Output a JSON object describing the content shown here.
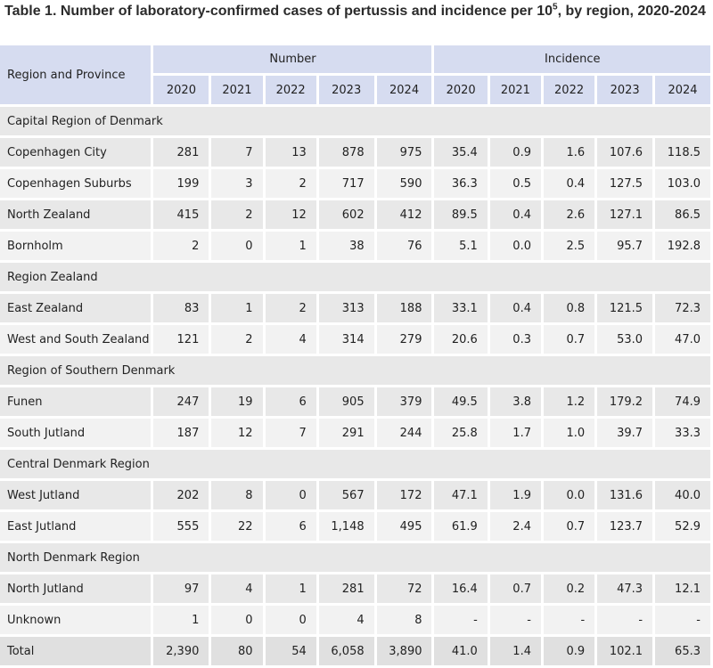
{
  "title_main": "Table 1. Number of laboratory-confirmed cases of pertussis and incidence per 10",
  "title_sup": "5",
  "title_tail": ", by region, 2020-2024",
  "header": {
    "row_label": "Region and Province",
    "group_number": "Number",
    "group_incidence": "Incidence",
    "years": [
      "2020",
      "2021",
      "2022",
      "2023",
      "2024"
    ]
  },
  "rows": [
    {
      "type": "region",
      "label": "Capital Region of Denmark"
    },
    {
      "type": "data",
      "label": "Copenhagen City",
      "number": [
        "281",
        "7",
        "13",
        "878",
        "975"
      ],
      "incidence": [
        "35.4",
        "0.9",
        "1.6",
        "107.6",
        "118.5"
      ]
    },
    {
      "type": "data",
      "label": "Copenhagen Suburbs",
      "number": [
        "199",
        "3",
        "2",
        "717",
        "590"
      ],
      "incidence": [
        "36.3",
        "0.5",
        "0.4",
        "127.5",
        "103.0"
      ]
    },
    {
      "type": "data",
      "label": "North Zealand",
      "number": [
        "415",
        "2",
        "12",
        "602",
        "412"
      ],
      "incidence": [
        "89.5",
        "0.4",
        "2.6",
        "127.1",
        "86.5"
      ]
    },
    {
      "type": "data",
      "label": "Bornholm",
      "number": [
        "2",
        "0",
        "1",
        "38",
        "76"
      ],
      "incidence": [
        "5.1",
        "0.0",
        "2.5",
        "95.7",
        "192.8"
      ]
    },
    {
      "type": "region",
      "label": "Region Zealand"
    },
    {
      "type": "data",
      "label": "East Zealand",
      "number": [
        "83",
        "1",
        "2",
        "313",
        "188"
      ],
      "incidence": [
        "33.1",
        "0.4",
        "0.8",
        "121.5",
        "72.3"
      ]
    },
    {
      "type": "data",
      "label": "West and South Zealand",
      "number": [
        "121",
        "2",
        "4",
        "314",
        "279"
      ],
      "incidence": [
        "20.6",
        "0.3",
        "0.7",
        "53.0",
        "47.0"
      ]
    },
    {
      "type": "region",
      "label": "Region of Southern Denmark"
    },
    {
      "type": "data",
      "label": "Funen",
      "number": [
        "247",
        "19",
        "6",
        "905",
        "379"
      ],
      "incidence": [
        "49.5",
        "3.8",
        "1.2",
        "179.2",
        "74.9"
      ]
    },
    {
      "type": "data",
      "label": "South Jutland",
      "number": [
        "187",
        "12",
        "7",
        "291",
        "244"
      ],
      "incidence": [
        "25.8",
        "1.7",
        "1.0",
        "39.7",
        "33.3"
      ]
    },
    {
      "type": "region",
      "label": "Central Denmark Region"
    },
    {
      "type": "data",
      "label": "West Jutland",
      "number": [
        "202",
        "8",
        "0",
        "567",
        "172"
      ],
      "incidence": [
        "47.1",
        "1.9",
        "0.0",
        "131.6",
        "40.0"
      ]
    },
    {
      "type": "data",
      "label": "East Jutland",
      "number": [
        "555",
        "22",
        "6",
        "1,148",
        "495"
      ],
      "incidence": [
        "61.9",
        "2.4",
        "0.7",
        "123.7",
        "52.9"
      ]
    },
    {
      "type": "region",
      "label": "North Denmark Region"
    },
    {
      "type": "data",
      "label": "North Jutland",
      "number": [
        "97",
        "4",
        "1",
        "281",
        "72"
      ],
      "incidence": [
        "16.4",
        "0.7",
        "0.2",
        "47.3",
        "12.1"
      ]
    },
    {
      "type": "data",
      "label": "Unknown",
      "number": [
        "1",
        "0",
        "0",
        "4",
        "8"
      ],
      "incidence": [
        "-",
        "-",
        "-",
        "-",
        "-"
      ]
    },
    {
      "type": "total",
      "label": "Total",
      "number": [
        "2,390",
        "80",
        "54",
        "6,058",
        "3,890"
      ],
      "incidence": [
        "41.0",
        "1.4",
        "0.9",
        "102.1",
        "65.3"
      ]
    }
  ],
  "colors": {
    "header_bg": "#d6dcf0",
    "row_odd": "#e8e8e8",
    "row_even": "#f2f2f2"
  }
}
